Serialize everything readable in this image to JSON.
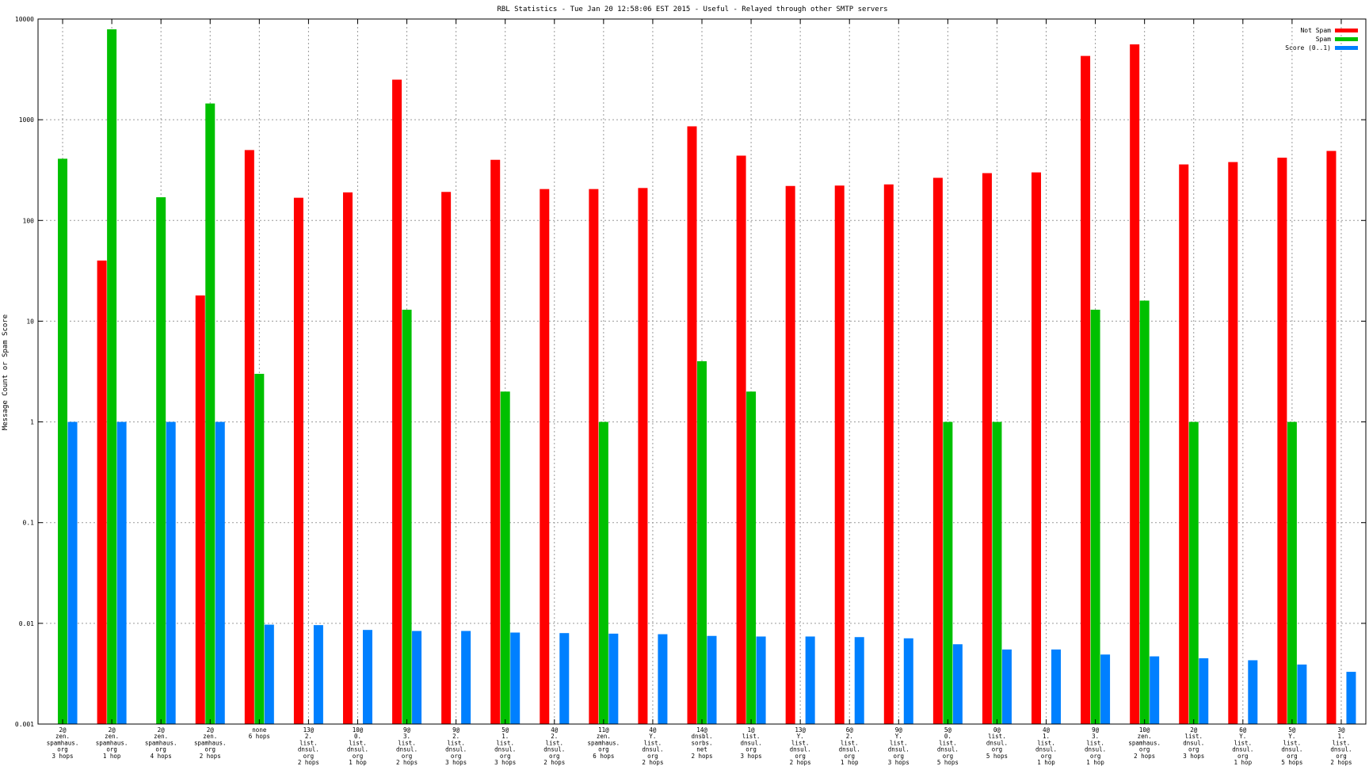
{
  "chart_data": {
    "type": "bar",
    "title": "RBL Statistics - Tue Jan 20 12:58:06 EST 2015 - Useful - Relayed through other SMTP servers",
    "ylabel": "Message Count or Spam Score",
    "xlabel": "",
    "yscale": "log",
    "ylim": [
      0.001,
      10000
    ],
    "yticks": [
      {
        "v": 0.001,
        "label": "0.001"
      },
      {
        "v": 0.01,
        "label": "0.01"
      },
      {
        "v": 0.1,
        "label": "0.1"
      },
      {
        "v": 1,
        "label": "1"
      },
      {
        "v": 10,
        "label": "10"
      },
      {
        "v": 100,
        "label": "100"
      },
      {
        "v": 1000,
        "label": "1000"
      },
      {
        "v": 10000,
        "label": "10000"
      }
    ],
    "grid": true,
    "legend_position": "top-right",
    "categories": [
      [
        "2@",
        "zen.",
        "spamhaus.",
        "org",
        "3 hops"
      ],
      [
        "2@",
        "zen.",
        "spamhaus.",
        "org",
        "1 hop"
      ],
      [
        "2@",
        "zen.",
        "spamhaus.",
        "org",
        "4 hops"
      ],
      [
        "2@",
        "zen.",
        "spamhaus.",
        "org",
        "2 hops"
      ],
      [
        "none",
        "6 hops"
      ],
      [
        "13@",
        "2.",
        "list.",
        "dnsul.",
        "org",
        "2 hops"
      ],
      [
        "10@",
        "0.",
        "list.",
        "dnsul.",
        "org",
        "1 hop"
      ],
      [
        "9@",
        "3.",
        "list.",
        "dnsul.",
        "org",
        "2 hops"
      ],
      [
        "9@",
        "2.",
        "list.",
        "dnsul.",
        "org",
        "3 hops"
      ],
      [
        "5@",
        "1.",
        "list.",
        "dnsul.",
        "org",
        "3 hops"
      ],
      [
        "4@",
        "2.",
        "list.",
        "dnsul.",
        "org",
        "2 hops"
      ],
      [
        "11@",
        "zen.",
        "spamhaus.",
        "org",
        "6 hops"
      ],
      [
        "4@",
        "Y.",
        "list.",
        "dnsul.",
        "org",
        "2 hops"
      ],
      [
        "14@",
        "dnsbl.",
        "sorbs.",
        "net",
        "2 hops"
      ],
      [
        "1@",
        "list.",
        "dnsul.",
        "org",
        "3 hops"
      ],
      [
        "13@",
        "Y.",
        "list.",
        "dnsul.",
        "org",
        "2 hops"
      ],
      [
        "6@",
        "2.",
        "list.",
        "dnsul.",
        "org",
        "1 hop"
      ],
      [
        "9@",
        "Y.",
        "list.",
        "dnsul.",
        "org",
        "3 hops"
      ],
      [
        "5@",
        "0.",
        "list.",
        "dnsul.",
        "org",
        "5 hops"
      ],
      [
        "0@",
        "list.",
        "dnsul.",
        "org",
        "5 hops"
      ],
      [
        "4@",
        "1.",
        "list.",
        "dnsul.",
        "org",
        "1 hop"
      ],
      [
        "9@",
        "3.",
        "list.",
        "dnsul.",
        "org",
        "1 hop"
      ],
      [
        "10@",
        "zen.",
        "spamhaus.",
        "org",
        "2 hops"
      ],
      [
        "2@",
        "list.",
        "dnsul.",
        "org",
        "3 hops"
      ],
      [
        "6@",
        "Y.",
        "list.",
        "dnsul.",
        "org",
        "1 hop"
      ],
      [
        "5@",
        "Y.",
        "list.",
        "dnsul.",
        "org",
        "5 hops"
      ],
      [
        "3@",
        "1.",
        "list.",
        "dnsul.",
        "org",
        "2 hops"
      ]
    ],
    "series": [
      {
        "name": "Not Spam",
        "color": "#ff0000",
        "values": [
          null,
          40,
          null,
          18,
          500,
          168,
          190,
          2500,
          192,
          400,
          205,
          205,
          210,
          860,
          440,
          220,
          222,
          228,
          265,
          295,
          300,
          4300,
          5600,
          360,
          380,
          420,
          490
        ]
      },
      {
        "name": "Spam",
        "color": "#00c000",
        "values": [
          410,
          7900,
          170,
          1450,
          3,
          null,
          null,
          13,
          null,
          2,
          null,
          1,
          null,
          4,
          2,
          null,
          null,
          null,
          1,
          1,
          null,
          13,
          16,
          1,
          null,
          1,
          null
        ]
      },
      {
        "name": "Score (0..1)",
        "color": "#0080ff",
        "values": [
          1,
          1,
          1,
          1,
          0.0097,
          0.0096,
          0.0086,
          0.0084,
          0.0084,
          0.0081,
          0.008,
          0.0079,
          0.0078,
          0.0075,
          0.0074,
          0.0074,
          0.0073,
          0.0071,
          0.0062,
          0.0055,
          0.0055,
          0.0049,
          0.0047,
          0.0045,
          0.0043,
          0.0039,
          0.0033
        ]
      }
    ]
  }
}
